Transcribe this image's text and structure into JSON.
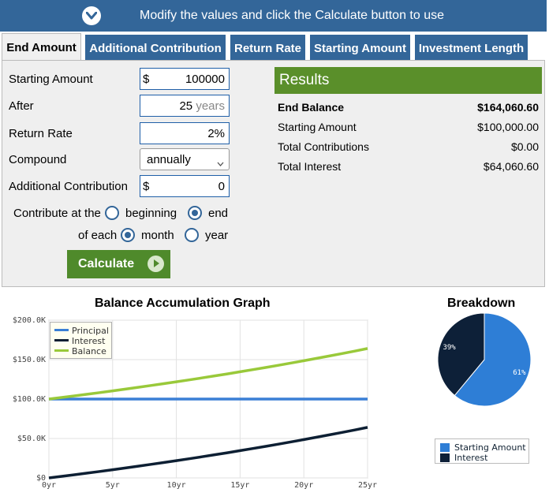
{
  "banner": {
    "text": "Modify the values and click the Calculate button to use"
  },
  "tabs": [
    {
      "label": "End Amount"
    },
    {
      "label": "Additional Contribution"
    },
    {
      "label": "Return Rate"
    },
    {
      "label": "Starting Amount"
    },
    {
      "label": "Investment Length"
    }
  ],
  "form": {
    "starting_amount": {
      "label": "Starting Amount",
      "prefix": "$",
      "value": "100000"
    },
    "after": {
      "label": "After",
      "value": "25",
      "unit": "years"
    },
    "return_rate": {
      "label": "Return Rate",
      "value": "2",
      "unit": "%"
    },
    "compound": {
      "label": "Compound",
      "value": "annually"
    },
    "additional_contribution": {
      "label": "Additional Contribution",
      "prefix": "$",
      "value": "0"
    },
    "contribute_at": {
      "label": "Contribute at the",
      "options": [
        "beginning",
        "end"
      ],
      "selected": "end"
    },
    "contribute_each": {
      "label": "of each",
      "options": [
        "month",
        "year"
      ],
      "selected": "month"
    },
    "calculate_label": "Calculate"
  },
  "results": {
    "title": "Results",
    "rows": [
      {
        "label": "End Balance",
        "value": "$164,060.60"
      },
      {
        "label": "Starting Amount",
        "value": "$100,000.00"
      },
      {
        "label": "Total Contributions",
        "value": "$0.00"
      },
      {
        "label": "Total Interest",
        "value": "$64,060.60"
      }
    ]
  },
  "colors": {
    "principal": "#3a7fd5",
    "interest": "#0d1f33",
    "balance": "#99c93a",
    "start_slice": "#2e7ed6",
    "interest_slice": "#0d2038"
  },
  "chart_data": [
    {
      "type": "line",
      "title": "Balance Accumulation Graph",
      "x": [
        0,
        1,
        2,
        3,
        4,
        5,
        6,
        7,
        8,
        9,
        10,
        11,
        12,
        13,
        14,
        15,
        16,
        17,
        18,
        19,
        20,
        21,
        22,
        23,
        24,
        25
      ],
      "x_tick_labels": [
        "0yr",
        "5yr",
        "10yr",
        "15yr",
        "20yr",
        "25yr"
      ],
      "x_ticks": [
        0,
        5,
        10,
        15,
        20,
        25
      ],
      "y_tick_labels": [
        "$0",
        "$50.0K",
        "$100.0K",
        "$150.0K",
        "$200.0K"
      ],
      "y_ticks": [
        0,
        50000,
        100000,
        150000,
        200000
      ],
      "ylim": [
        0,
        200000
      ],
      "xlim": [
        0,
        25
      ],
      "grid": true,
      "legend_position": "top-left",
      "series": [
        {
          "name": "Principal",
          "values": [
            100000,
            100000,
            100000,
            100000,
            100000,
            100000,
            100000,
            100000,
            100000,
            100000,
            100000,
            100000,
            100000,
            100000,
            100000,
            100000,
            100000,
            100000,
            100000,
            100000,
            100000,
            100000,
            100000,
            100000,
            100000,
            100000
          ]
        },
        {
          "name": "Interest",
          "values": [
            0,
            2000,
            4040,
            6121,
            8243,
            10408,
            12616,
            14869,
            17166,
            19509,
            21899,
            24337,
            26824,
            29361,
            31948,
            34587,
            37279,
            40024,
            42825,
            45681,
            48595,
            51567,
            54598,
            57690,
            60844,
            64061
          ]
        },
        {
          "name": "Balance",
          "values": [
            100000,
            102000,
            104040,
            106121,
            108243,
            110408,
            112616,
            114869,
            117166,
            119509,
            121899,
            124337,
            126824,
            129361,
            131948,
            134587,
            137279,
            140024,
            142825,
            145681,
            148595,
            151567,
            154598,
            157690,
            160844,
            164061
          ]
        }
      ]
    },
    {
      "type": "pie",
      "title": "Breakdown",
      "slices": [
        {
          "name": "Starting Amount",
          "value": 61,
          "label": "61%"
        },
        {
          "name": "Interest",
          "value": 39,
          "label": "39%"
        }
      ],
      "legend_position": "bottom"
    }
  ]
}
